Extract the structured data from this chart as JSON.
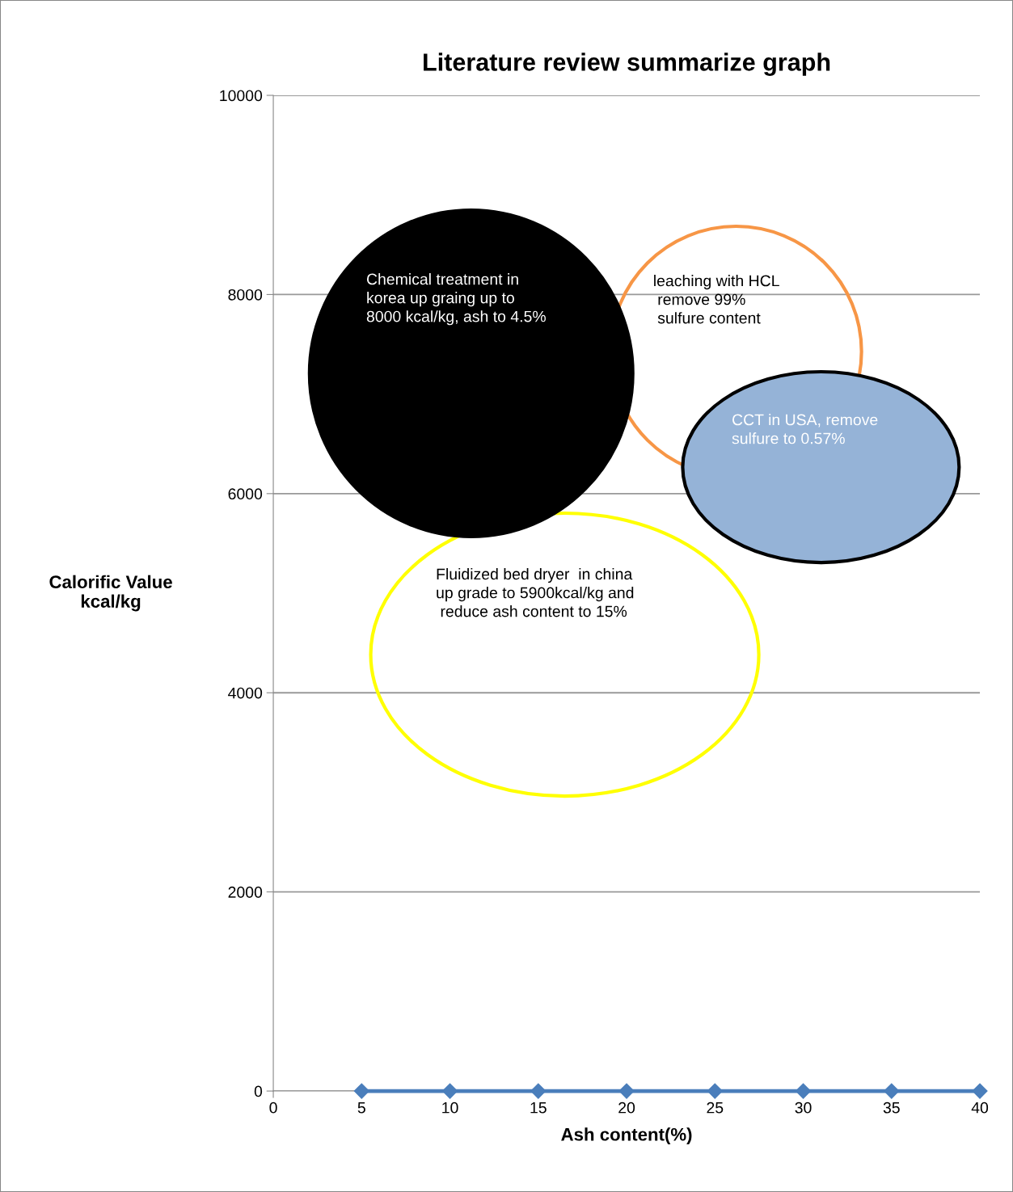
{
  "chart_data": {
    "type": "line",
    "title": "Literature review summarize graph",
    "xlabel": "Ash content(%)",
    "ylabel": "Calorific Value\nkcal/kg",
    "x": [
      5,
      10,
      15,
      20,
      25,
      30,
      35,
      40
    ],
    "series": [
      {
        "color": "#4a7ebb",
        "values": [
          0,
          0,
          0,
          0,
          0,
          0,
          0,
          0
        ]
      }
    ],
    "marker": "diamond",
    "xlim": [
      0,
      40
    ],
    "xticks": [
      0,
      5,
      10,
      15,
      20,
      25,
      30,
      35,
      40
    ],
    "ylim": [
      0,
      10000
    ],
    "yticks": [
      0,
      2000,
      4000,
      6000,
      8000,
      10000
    ],
    "grid": "y",
    "annotations": [
      "Fluidized bed dryer  in china\nup grade to 5900kcal/kg and\n reduce ash content to 15%",
      "leaching with HCL\n remove 99%\n sulfure content",
      "Chemical treatment in\nkorea up graing up to\n8000 kcal/kg, ash to 4.5%",
      "CCT in USA, remove\nsulfure to 0.57%"
    ]
  }
}
